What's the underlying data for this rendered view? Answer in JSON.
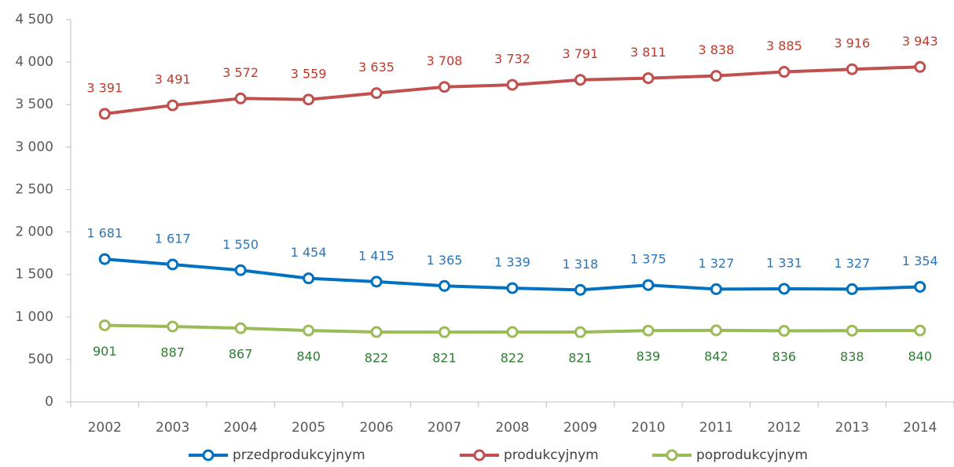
{
  "chart_data": {
    "type": "line",
    "categories": [
      "2002",
      "2003",
      "2004",
      "2005",
      "2006",
      "2007",
      "2008",
      "2009",
      "2010",
      "2011",
      "2012",
      "2013",
      "2014"
    ],
    "series": [
      {
        "name": "przedprodukcyjnym",
        "color": "#0070C0",
        "label_color": "#2E75B6",
        "values": [
          1681,
          1617,
          1550,
          1454,
          1415,
          1365,
          1339,
          1318,
          1375,
          1327,
          1331,
          1327,
          1354
        ],
        "value_labels": [
          "1 681",
          "1 617",
          "1 550",
          "1 454",
          "1 415",
          "1 365",
          "1 339",
          "1 318",
          "1 375",
          "1 327",
          "1 331",
          "1 327",
          "1 354"
        ]
      },
      {
        "name": "produkcyjnym",
        "color": "#C0504D",
        "label_color": "#C0392B",
        "values": [
          3391,
          3491,
          3572,
          3559,
          3635,
          3708,
          3732,
          3791,
          3811,
          3838,
          3885,
          3916,
          3943
        ],
        "value_labels": [
          "3 391",
          "3 491",
          "3 572",
          "3 559",
          "3 635",
          "3 708",
          "3 732",
          "3 791",
          "3 811",
          "3 838",
          "3 885",
          "3 916",
          "3 943"
        ]
      },
      {
        "name": "poprodukcyjnym",
        "color": "#9BBB59",
        "label_color": "#2E7D32",
        "values": [
          901,
          887,
          867,
          840,
          822,
          821,
          822,
          821,
          839,
          842,
          836,
          838,
          840
        ],
        "value_labels": [
          "901",
          "887",
          "867",
          "840",
          "822",
          "821",
          "822",
          "821",
          "839",
          "842",
          "836",
          "838",
          "840"
        ]
      }
    ],
    "ylim": [
      0,
      4500
    ],
    "yticks": [
      0,
      500,
      {
        "value": 1000,
        "label": "1 000"
      },
      {
        "value": 1500,
        "label": "1 500"
      },
      {
        "value": 2000,
        "label": "2 000"
      },
      {
        "value": 2500,
        "label": "2 500"
      },
      {
        "value": 3000,
        "label": "3 000"
      },
      {
        "value": 3500,
        "label": "3 500"
      },
      {
        "value": 4000,
        "label": "4 000"
      },
      {
        "value": 4500,
        "label": "4 500"
      }
    ],
    "grid": false,
    "legend": "bottom"
  }
}
